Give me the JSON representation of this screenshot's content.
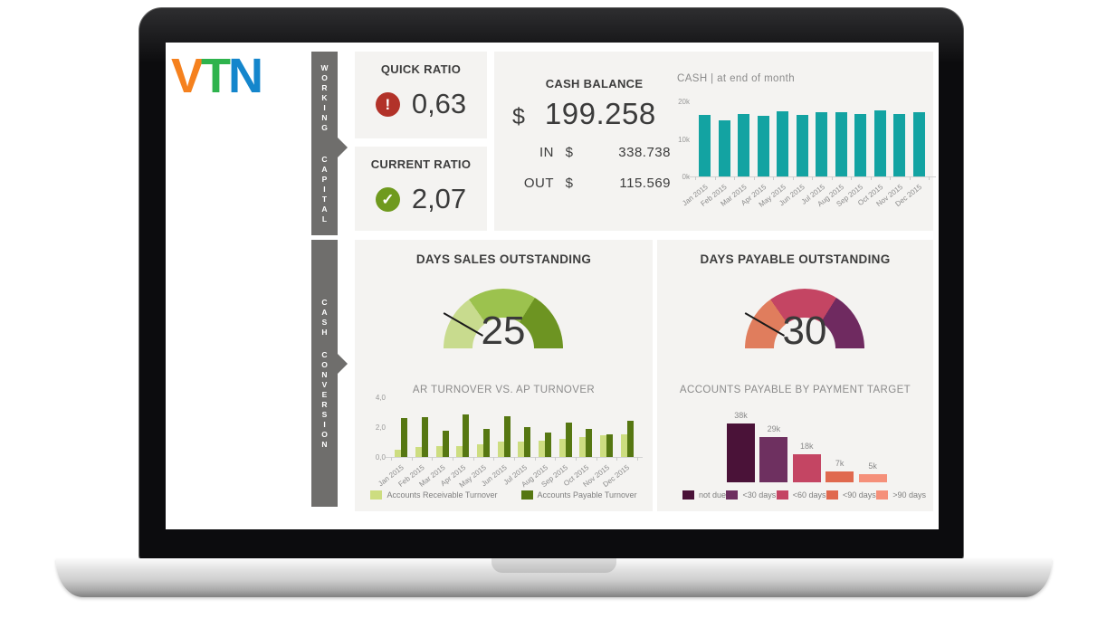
{
  "logo": {
    "name": "VTN",
    "letters": [
      {
        "char": "V",
        "color": "#f5811e"
      },
      {
        "char": "T",
        "color": "#2eb34d"
      },
      {
        "char": "N",
        "color": "#1486cc"
      }
    ]
  },
  "sidebar": {
    "tabs": [
      {
        "id": "working-capital",
        "label": "WORKING CAPITAL",
        "words": [
          "WORKING",
          "CAPITAL"
        ],
        "color": "#6f6e6c"
      },
      {
        "id": "cash-conversion",
        "label": "CASH CONVERSION",
        "words": [
          "CASH",
          "CONVERSION"
        ],
        "color": "#6f6e6c"
      }
    ]
  },
  "cards": {
    "quick_ratio": {
      "title": "QUICK RATIO",
      "value": "0,63",
      "icon": "alert-icon",
      "icon_glyph": "!",
      "icon_color": "#b23229"
    },
    "current_ratio": {
      "title": "CURRENT RATIO",
      "value": "2,07",
      "icon": "check-icon",
      "icon_glyph": "✓",
      "icon_color": "#6f9a1e"
    },
    "cash_balance": {
      "title": "CASH BALANCE",
      "currency_symbol": "$",
      "value": "199.258",
      "rows": [
        {
          "label": "IN",
          "currency": "$",
          "value": "338.738"
        },
        {
          "label": "OUT",
          "currency": "$",
          "value": "115.569"
        }
      ]
    }
  },
  "chart_data": [
    {
      "id": "cash_by_month",
      "type": "bar",
      "title": "CASH | at end of month",
      "categories": [
        "Jan 2015",
        "Feb 2015",
        "Mar 2015",
        "Apr 2015",
        "May 2015",
        "Jun 2015",
        "Jul 2015",
        "Aug 2015",
        "Sep 2015",
        "Oct 2015",
        "Nov 2015",
        "Dec 2015"
      ],
      "values": [
        16300,
        14900,
        16600,
        16100,
        17300,
        16400,
        17100,
        17200,
        16600,
        17500,
        16600,
        17100
      ],
      "ylim": [
        0,
        20000
      ],
      "yticks": [
        {
          "label": "0k",
          "value": 0
        },
        {
          "label": "10k",
          "value": 10000
        },
        {
          "label": "20k",
          "value": 20000
        }
      ],
      "bar_color": "#13a3a2",
      "grid": false
    },
    {
      "id": "dso_gauge",
      "type": "gauge",
      "title": "DAYS SALES OUTSTANDING",
      "value": 25,
      "segment_colors": [
        "#c8db8e",
        "#9cc24e",
        "#6d9422"
      ],
      "needle_angle_deg": 150
    },
    {
      "id": "dpo_gauge",
      "type": "gauge",
      "title": "DAYS PAYABLE OUTSTANDING",
      "value": 30,
      "segment_colors": [
        "#e07d5d",
        "#c44563",
        "#6f2a60"
      ],
      "needle_angle_deg": 150
    },
    {
      "id": "ar_ap_turnover",
      "type": "bar",
      "title": "AR TURNOVER VS. AP TURNOVER",
      "categories": [
        "Jan 2015",
        "Feb 2015",
        "Mar 2015",
        "Apr 2015",
        "May 2015",
        "Jun 2015",
        "Jul 2015",
        "Aug 2015",
        "Sep 2015",
        "Oct 2015",
        "Nov 2015",
        "Dec 2015"
      ],
      "series": [
        {
          "name": "Accounts Receivable Turnover",
          "color": "#cddd80",
          "values": [
            0.5,
            0.65,
            0.7,
            0.75,
            0.85,
            1.05,
            1.05,
            1.1,
            1.2,
            1.35,
            1.45,
            1.5
          ]
        },
        {
          "name": "Accounts Payable Turnover",
          "color": "#567712",
          "values": [
            2.6,
            2.65,
            1.75,
            2.85,
            1.85,
            2.75,
            2.0,
            1.65,
            2.3,
            1.85,
            1.5,
            2.4
          ]
        }
      ],
      "ylim": [
        0,
        4
      ],
      "yticks": [
        {
          "label": "0,0",
          "value": 0
        },
        {
          "label": "2,0",
          "value": 2
        },
        {
          "label": "4,0",
          "value": 4
        }
      ],
      "legend_position": "bottom",
      "grid": false
    },
    {
      "id": "ap_by_payment_target",
      "type": "bar",
      "title": "ACCOUNTS PAYABLE BY PAYMENT TARGET",
      "categories": [
        "not due",
        "<30 days",
        "<60 days",
        "<90 days",
        ">90 days"
      ],
      "values": [
        38000,
        29000,
        18000,
        7000,
        5000
      ],
      "value_labels": [
        "38k",
        "29k",
        "18k",
        "7k",
        "5k"
      ],
      "colors": [
        "#4a1238",
        "#6e3060",
        "#c44563",
        "#e0694e",
        "#f5907a"
      ],
      "legend_position": "bottom",
      "grid": false
    }
  ]
}
